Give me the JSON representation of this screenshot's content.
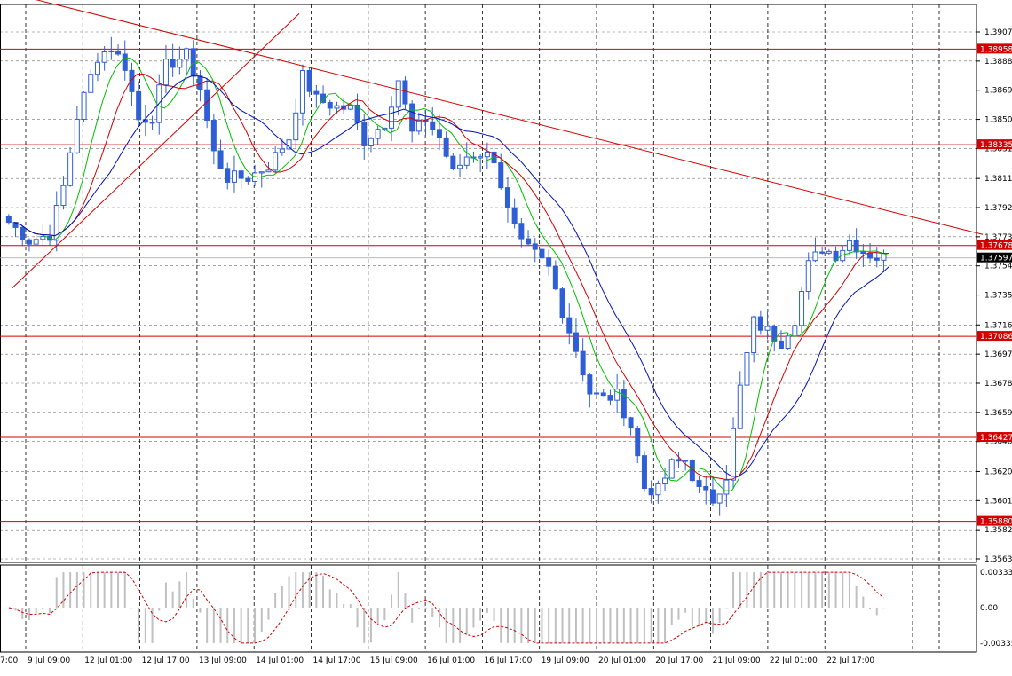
{
  "colors": {
    "background": "#ffffff",
    "grid": "#000000",
    "candle_bull": "#2f5fd6",
    "candle_bear": "#2f5fd6",
    "sr_line": "#d40000",
    "trend_line": "#d40000",
    "ma_fast": "#00c000",
    "ma_mid": "#d40000",
    "ma_slow": "#0010c0",
    "osc_hist": "#c0c0c0",
    "osc_signal": "#d40000",
    "price_tag_red": "#d40000",
    "price_tag_current": "#000000"
  },
  "chart_data": {
    "type": "candlestick",
    "price_axis": {
      "ylim": [
        1.35635,
        1.3907
      ],
      "tick_labels": [
        "1.39070",
        "1.38880",
        "1.38690",
        "1.38500",
        "1.38310",
        "1.38115",
        "1.37925",
        "1.37735",
        "1.37545",
        "1.37355",
        "1.37160",
        "1.36970",
        "1.36780",
        "1.36590",
        "1.36400",
        "1.36205",
        "1.36015",
        "1.35825",
        "1.35635"
      ]
    },
    "time_axis": {
      "tick_labels": [
        "7:00",
        "9 Jul 09:00",
        "12 Jul 01:00",
        "12 Jul 17:00",
        "13 Jul 09:00",
        "14 Jul 01:00",
        "14 Jul 17:00",
        "15 Jul 09:00",
        "16 Jul 01:00",
        "16 Jul 17:00",
        "19 Jul 09:00",
        "20 Jul 01:00",
        "20 Jul 17:00",
        "21 Jul 09:00",
        "22 Jul 01:00",
        "22 Jul 17:00"
      ]
    },
    "horizontal_levels": [
      {
        "label": "1.38958",
        "value": 1.38958
      },
      {
        "label": "1.38335",
        "value": 1.38335
      },
      {
        "label": "1.37678",
        "value": 1.37678
      },
      {
        "label": "1.37086",
        "value": 1.37086
      },
      {
        "label": "1.36427",
        "value": 1.36427
      },
      {
        "label": "1.35880",
        "value": 1.3588
      }
    ],
    "current_price": {
      "label": "1.37597",
      "value": 1.37597
    },
    "trend_lines": [
      {
        "from": {
          "bar": 0,
          "price": 1.3933
        },
        "to": {
          "bar": 143,
          "price": 1.3775
        }
      },
      {
        "from": {
          "bar": 1,
          "price": 1.374
        },
        "to": {
          "bar": 43,
          "price": 1.3919
        }
      }
    ],
    "price_keypoints": [
      [
        0,
        1.3783
      ],
      [
        3,
        1.3771
      ],
      [
        6,
        1.3775
      ],
      [
        8,
        1.3806
      ],
      [
        10,
        1.3852
      ],
      [
        13,
        1.3891
      ],
      [
        15,
        1.3897
      ],
      [
        17,
        1.3885
      ],
      [
        19,
        1.385
      ],
      [
        21,
        1.3852
      ],
      [
        23,
        1.3885
      ],
      [
        26,
        1.3892
      ],
      [
        28,
        1.387
      ],
      [
        30,
        1.3828
      ],
      [
        32,
        1.3812
      ],
      [
        35,
        1.3812
      ],
      [
        38,
        1.382
      ],
      [
        41,
        1.3838
      ],
      [
        43,
        1.3878
      ],
      [
        45,
        1.3863
      ],
      [
        48,
        1.3858
      ],
      [
        50,
        1.3857
      ],
      [
        52,
        1.3836
      ],
      [
        55,
        1.3848
      ],
      [
        57,
        1.3876
      ],
      [
        59,
        1.3841
      ],
      [
        61,
        1.385
      ],
      [
        63,
        1.3838
      ],
      [
        65,
        1.3815
      ],
      [
        67,
        1.3826
      ],
      [
        69,
        1.3828
      ],
      [
        71,
        1.3825
      ],
      [
        73,
        1.379
      ],
      [
        75,
        1.3768
      ],
      [
        77,
        1.3762
      ],
      [
        79,
        1.3753
      ],
      [
        81,
        1.3725
      ],
      [
        83,
        1.37
      ],
      [
        85,
        1.3672
      ],
      [
        87,
        1.3668
      ],
      [
        89,
        1.367
      ],
      [
        91,
        1.365
      ],
      [
        93,
        1.361
      ],
      [
        95,
        1.3608
      ],
      [
        97,
        1.3625
      ],
      [
        99,
        1.3628
      ],
      [
        101,
        1.3608
      ],
      [
        103,
        1.3602
      ],
      [
        105,
        1.3618
      ],
      [
        107,
        1.3675
      ],
      [
        109,
        1.3718
      ],
      [
        111,
        1.3712
      ],
      [
        113,
        1.3705
      ],
      [
        115,
        1.372
      ],
      [
        117,
        1.3755
      ],
      [
        119,
        1.3766
      ],
      [
        121,
        1.3762
      ],
      [
        123,
        1.3771
      ],
      [
        125,
        1.3764
      ],
      [
        127,
        1.376
      ],
      [
        128,
        1.376
      ]
    ],
    "moving_averages": [
      {
        "color_key": "ma_fast",
        "period_bars": 5
      },
      {
        "color_key": "ma_mid",
        "period_bars": 9
      },
      {
        "color_key": "ma_slow",
        "period_bars": 15
      }
    ],
    "oscillator": {
      "ylim": [
        -0.00335,
        0.00335
      ],
      "tick_labels": [
        "0.00333",
        "0.00",
        "-0.00335"
      ]
    }
  }
}
